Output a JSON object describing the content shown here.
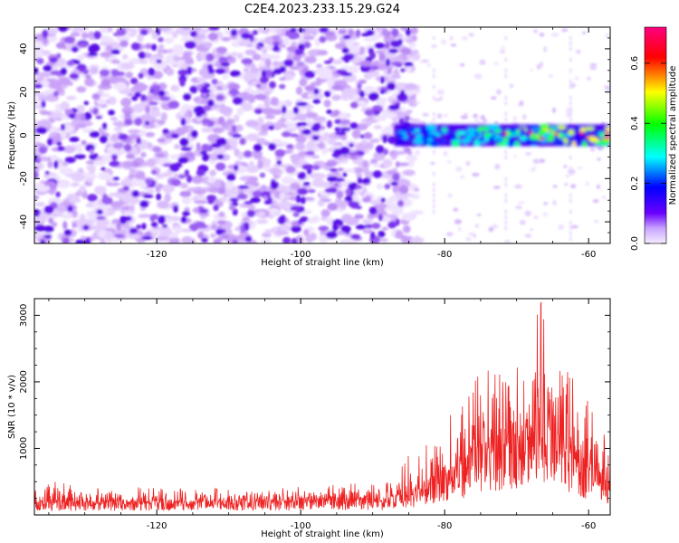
{
  "title": "C2E4.2023.233.15.29.G24",
  "chart_data": [
    {
      "type": "heatmap",
      "xlabel": "Height of straight line (km)",
      "ylabel": "Frequency (Hz)",
      "xlim": [
        -137,
        -57
      ],
      "ylim": [
        -50,
        50
      ],
      "xticks": [
        -120,
        -100,
        -80,
        -60
      ],
      "yticks": [
        -40,
        -20,
        0,
        20,
        40
      ],
      "colorbar": {
        "label": "Normalized spectral amplitude",
        "range": [
          0,
          0.72
        ],
        "ticks": [
          "0.0",
          "0.2",
          "0.4",
          "0.6"
        ],
        "colormap": [
          "#f3e8ff",
          "#5b00ff",
          "#0000ff",
          "#00ffff",
          "#00ff00",
          "#ffff00",
          "#ff0000",
          "#ff0080"
        ]
      },
      "description_regions": {
        "noise": {
          "x_range": [
            -137,
            -85
          ],
          "freq_range": [
            -50,
            50
          ],
          "typical_amplitude": 0.05
        },
        "signal": {
          "x_range": [
            -87,
            -57
          ],
          "center_freq": 0,
          "half_width": 5,
          "peak_amplitude": 0.72
        }
      }
    },
    {
      "type": "line",
      "xlabel": "Height of straight line (km)",
      "ylabel": "SNR (10 * v/v)",
      "xlim": [
        -137,
        -57
      ],
      "ylim": [
        0,
        3250
      ],
      "xticks": [
        -120,
        -100,
        -80,
        -60
      ],
      "yticks": [
        1000,
        2000,
        3000
      ],
      "color": "#ee2222",
      "envelope": {
        "x": [
          -137,
          -120,
          -100,
          -88,
          -85,
          -82,
          -80,
          -77,
          -75,
          -72,
          -70,
          -68,
          -66.5,
          -65,
          -63,
          -61,
          -59,
          -57
        ],
        "baseline": [
          180,
          180,
          200,
          220,
          300,
          450,
          600,
          750,
          900,
          1000,
          1150,
          1300,
          1400,
          1250,
          950,
          750,
          650,
          450
        ],
        "peak": [
          520,
          400,
          420,
          500,
          900,
          1400,
          1500,
          1900,
          2200,
          2100,
          2500,
          2700,
          3230,
          2800,
          2300,
          1900,
          1500,
          1300
        ]
      }
    }
  ]
}
